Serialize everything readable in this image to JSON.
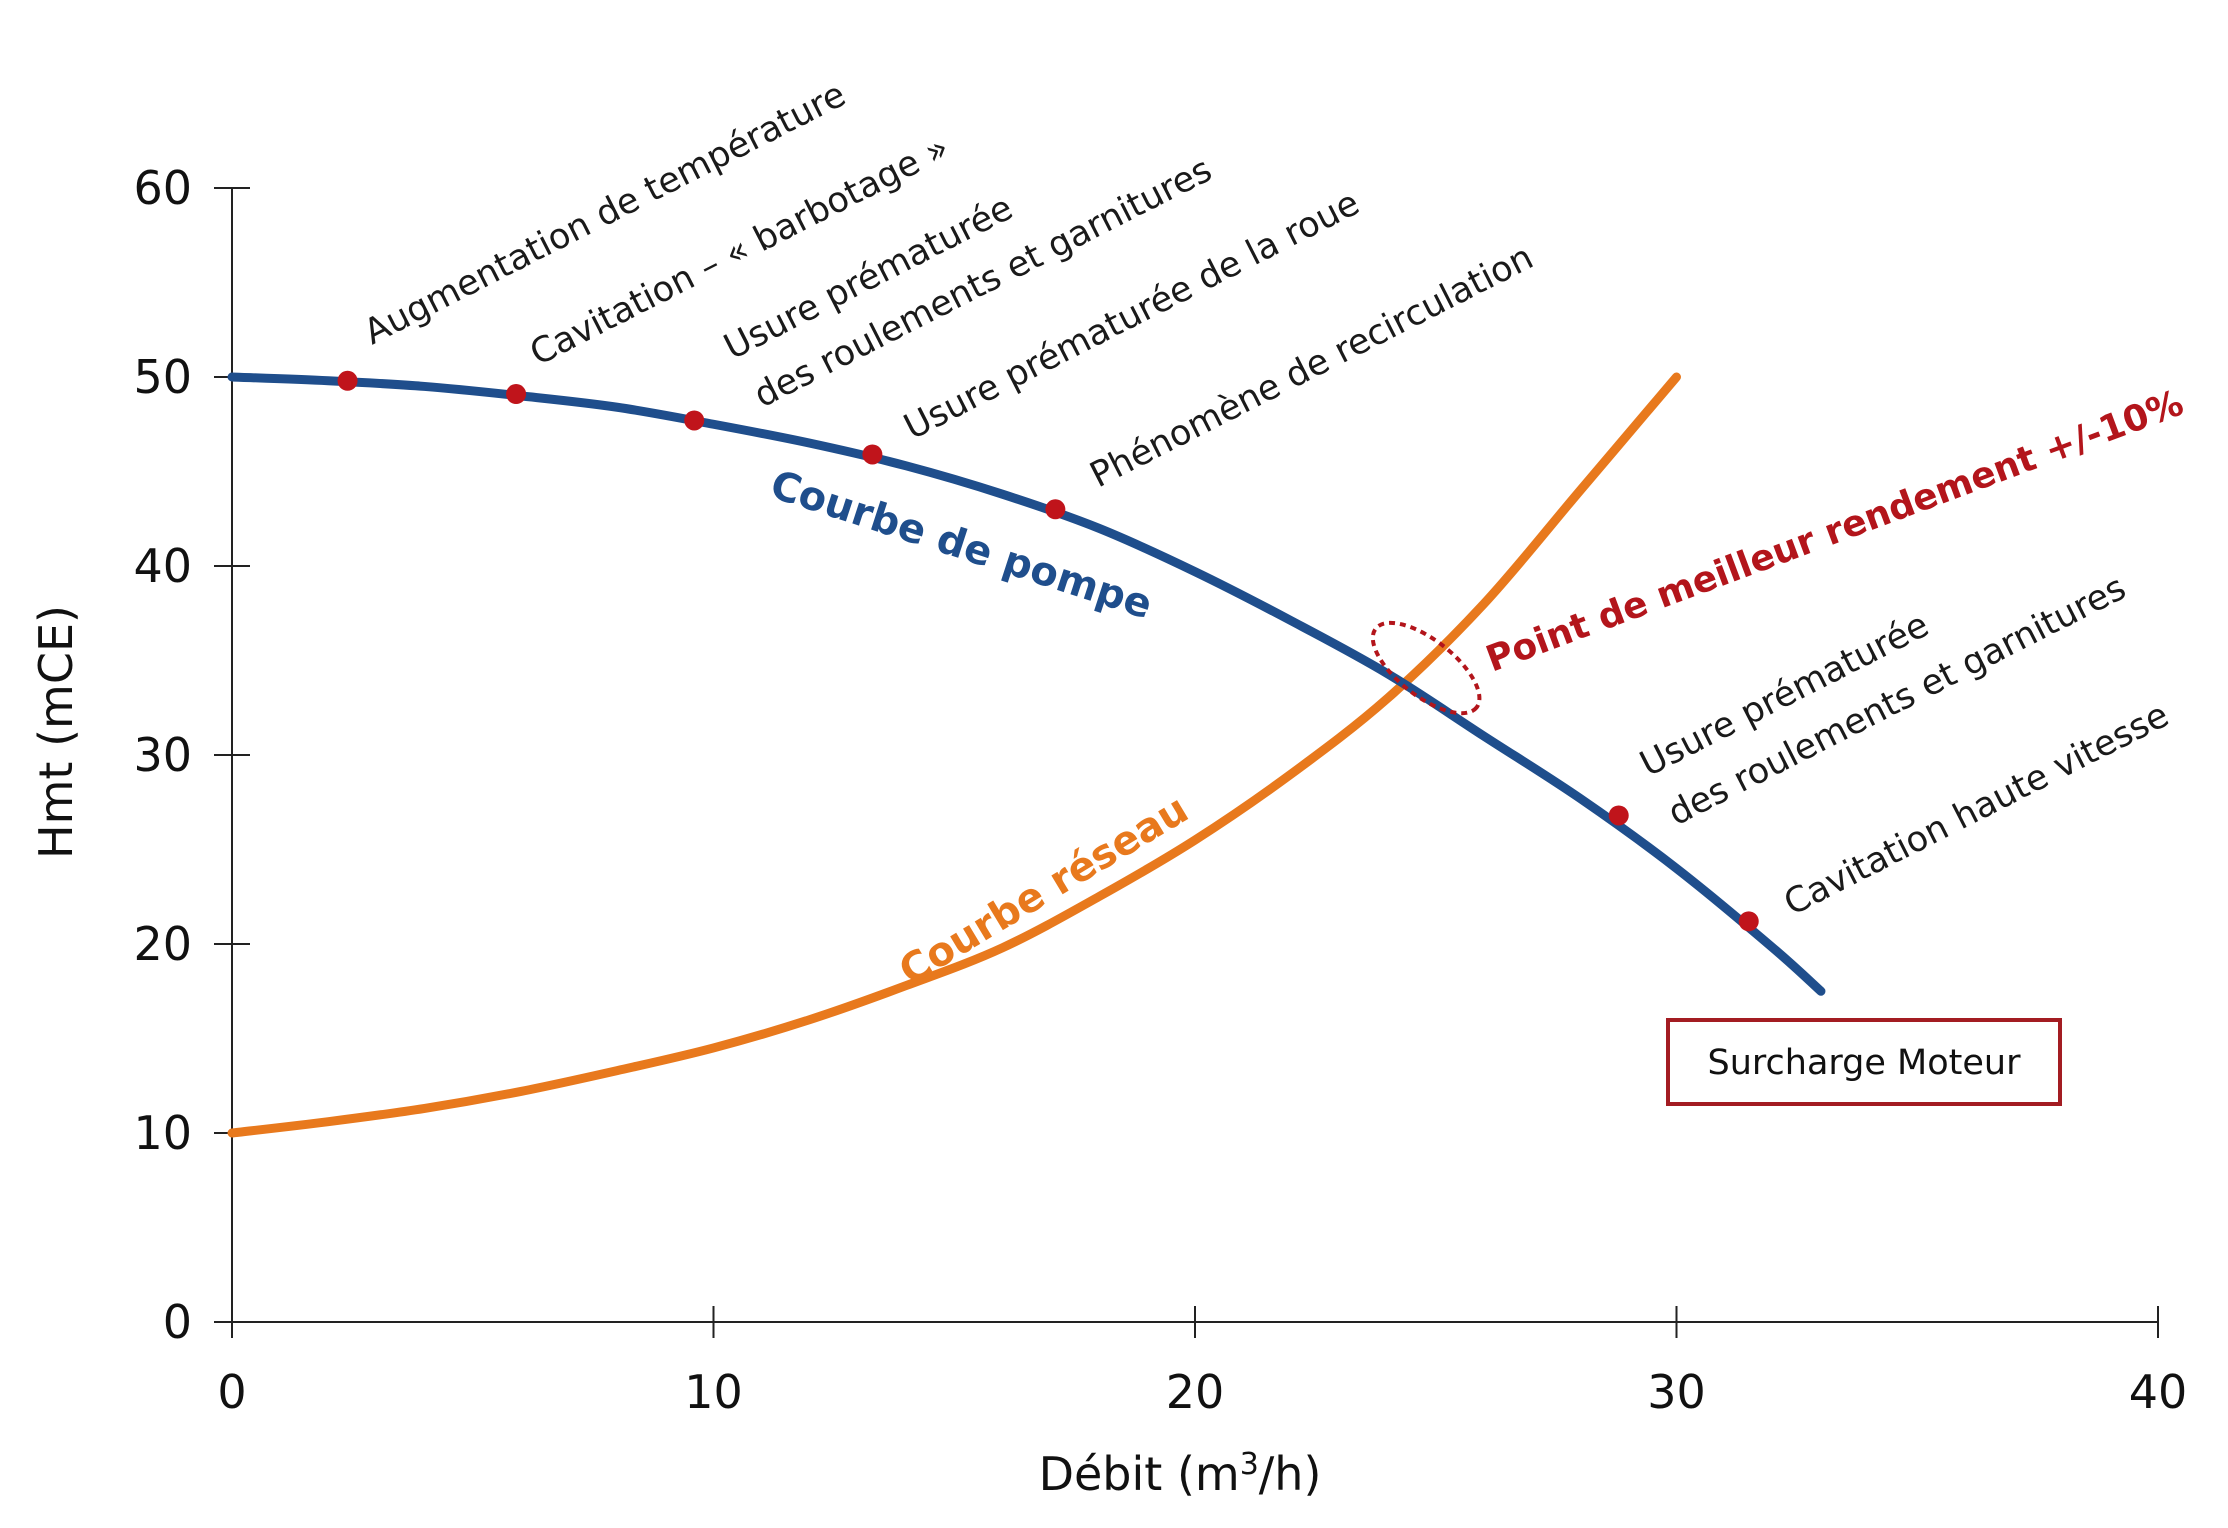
{
  "chart_data": {
    "type": "line",
    "title": "",
    "xlabel": "Débit (m³/h)",
    "xlabel_base": "Débit (m",
    "xlabel_sup": "3",
    "xlabel_end": "/h)",
    "ylabel": "Hmt (mCE)",
    "xlim": [
      0,
      40
    ],
    "ylim": [
      0,
      60
    ],
    "xticks": [
      0,
      10,
      20,
      30,
      40
    ],
    "yticks": [
      0,
      10,
      20,
      30,
      40,
      50,
      60
    ],
    "series": [
      {
        "name": "Courbe de pompe",
        "color": "#1f4e8c",
        "x": [
          0,
          2,
          4,
          6,
          8,
          10,
          12,
          14,
          16,
          18,
          20,
          22,
          24,
          26,
          28,
          30,
          32,
          33
        ],
        "y": [
          50,
          49.8,
          49.5,
          49,
          48.4,
          47.5,
          46.5,
          45.3,
          43.8,
          42,
          39.7,
          37.1,
          34.3,
          31,
          27.7,
          24,
          19.8,
          17.5
        ]
      },
      {
        "name": "Courbe réseau",
        "color": "#e8791d",
        "x": [
          0,
          2,
          4,
          6,
          8,
          10,
          12,
          14,
          16,
          18,
          20,
          22,
          24,
          26,
          28,
          30
        ],
        "y": [
          10,
          10.6,
          11.3,
          12.2,
          13.3,
          14.5,
          16,
          17.8,
          19.8,
          22.5,
          25.5,
          29,
          33,
          38,
          44,
          50
        ]
      }
    ],
    "points": [
      {
        "x": 2.4,
        "y": 49.8,
        "label": "Augmentation de température"
      },
      {
        "x": 5.9,
        "y": 49.1,
        "label": "Cavitation – « barbotage »"
      },
      {
        "x": 9.6,
        "y": 47.7,
        "label": "Usure prématurée",
        "label2": "des roulements et garnitures"
      },
      {
        "x": 13.3,
        "y": 45.9,
        "label": "Usure prématurée de la roue"
      },
      {
        "x": 17.1,
        "y": 43,
        "label": "Phénomène de recirculation"
      },
      {
        "x": 28.8,
        "y": 26.8,
        "label": "Usure prématurée",
        "label2": "des roulements et garnitures"
      },
      {
        "x": 31.5,
        "y": 21.2,
        "label": "Cavitation haute vitesse"
      }
    ],
    "point_color": "#c0141b",
    "best_efficiency": {
      "x": 24.8,
      "y": 34.6,
      "label": "Point de meilleur rendement +/-10%",
      "color": "#b3151b"
    },
    "pump_label": "Courbe de pompe",
    "network_label": "Courbe réseau",
    "overload_label": "Surcharge Moteur",
    "overload_color": "#a31c22"
  }
}
